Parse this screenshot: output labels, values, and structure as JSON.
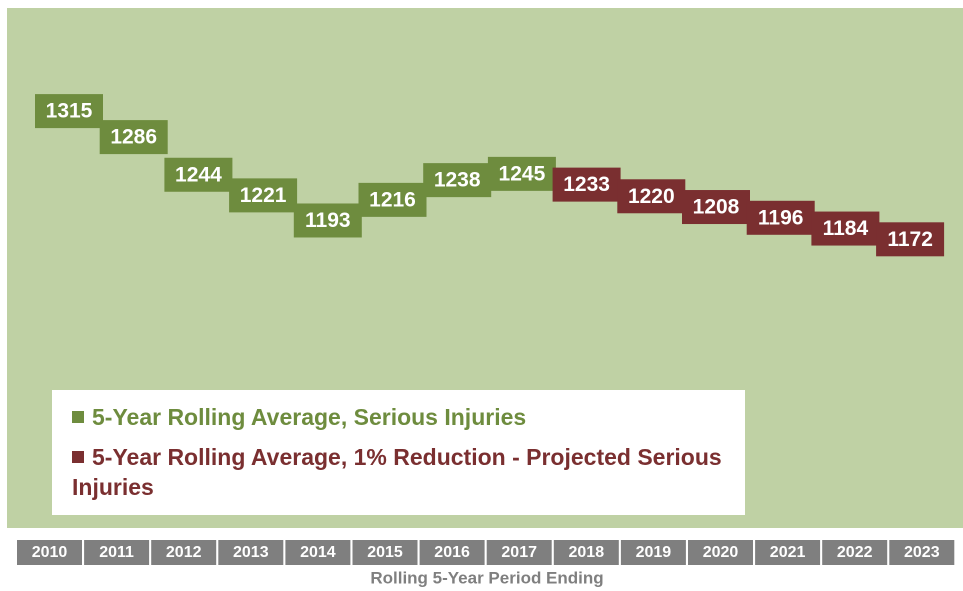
{
  "chart_data": {
    "type": "label-box",
    "categories": [
      "2010",
      "2011",
      "2012",
      "2013",
      "2014",
      "2015",
      "2016",
      "2017",
      "2018",
      "2019",
      "2020",
      "2021",
      "2022",
      "2023"
    ],
    "x_label": "Rolling 5-Year Period Ending",
    "series": [
      {
        "name": "5-Year Rolling Average, Serious Injuries",
        "color": "#6e8c3e",
        "values": [
          1315,
          1286,
          1244,
          1221,
          1193,
          1216,
          1238,
          1245,
          null,
          null,
          null,
          null,
          null,
          null
        ]
      },
      {
        "name": "5-Year Rolling Average, 1% Reduction - Projected Serious Injuries",
        "color": "#7a2f30",
        "values": [
          null,
          null,
          null,
          null,
          null,
          null,
          null,
          null,
          1233,
          1220,
          1208,
          1196,
          1184,
          1172
        ]
      }
    ],
    "ylim": [
      850,
      1430
    ]
  }
}
